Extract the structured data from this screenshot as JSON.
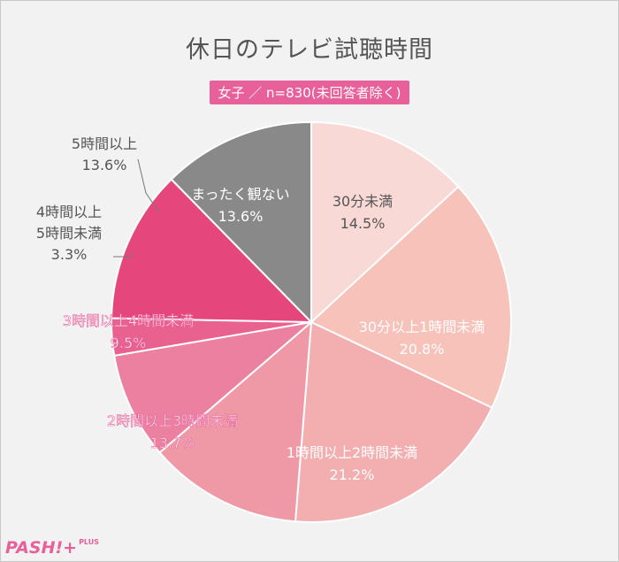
{
  "chart_data": {
    "type": "pie",
    "title": "休日のテレビ試聴時間",
    "subtitle": "女子 ／ n=830(未回答者除く)",
    "categories": [
      "30分未満",
      "30分以上1時間未満",
      "1時間以上2時間未満",
      "2時間以上3時間未満",
      "3時間以上4時間未満",
      "4時間以上5時間未満",
      "5時間以上",
      "まったく観ない"
    ],
    "values": [
      14.5,
      20.8,
      21.2,
      13.7,
      9.5,
      3.3,
      13.6,
      13.6
    ],
    "value_labels": [
      "14.5%",
      "20.8%",
      "21.2%",
      "13.7%",
      "9.5%",
      "3.3%",
      "13.6%",
      "13.6%"
    ],
    "colors": [
      "#f9d9d6",
      "#f6c2b9",
      "#f3aeb0",
      "#ef99a6",
      "#ec80a0",
      "#e9628f",
      "#e5477c",
      "#898989"
    ],
    "start_angle_deg": 0,
    "direction": "clockwise"
  },
  "logo": {
    "text": "PASH!+",
    "sub": "PLUS"
  }
}
